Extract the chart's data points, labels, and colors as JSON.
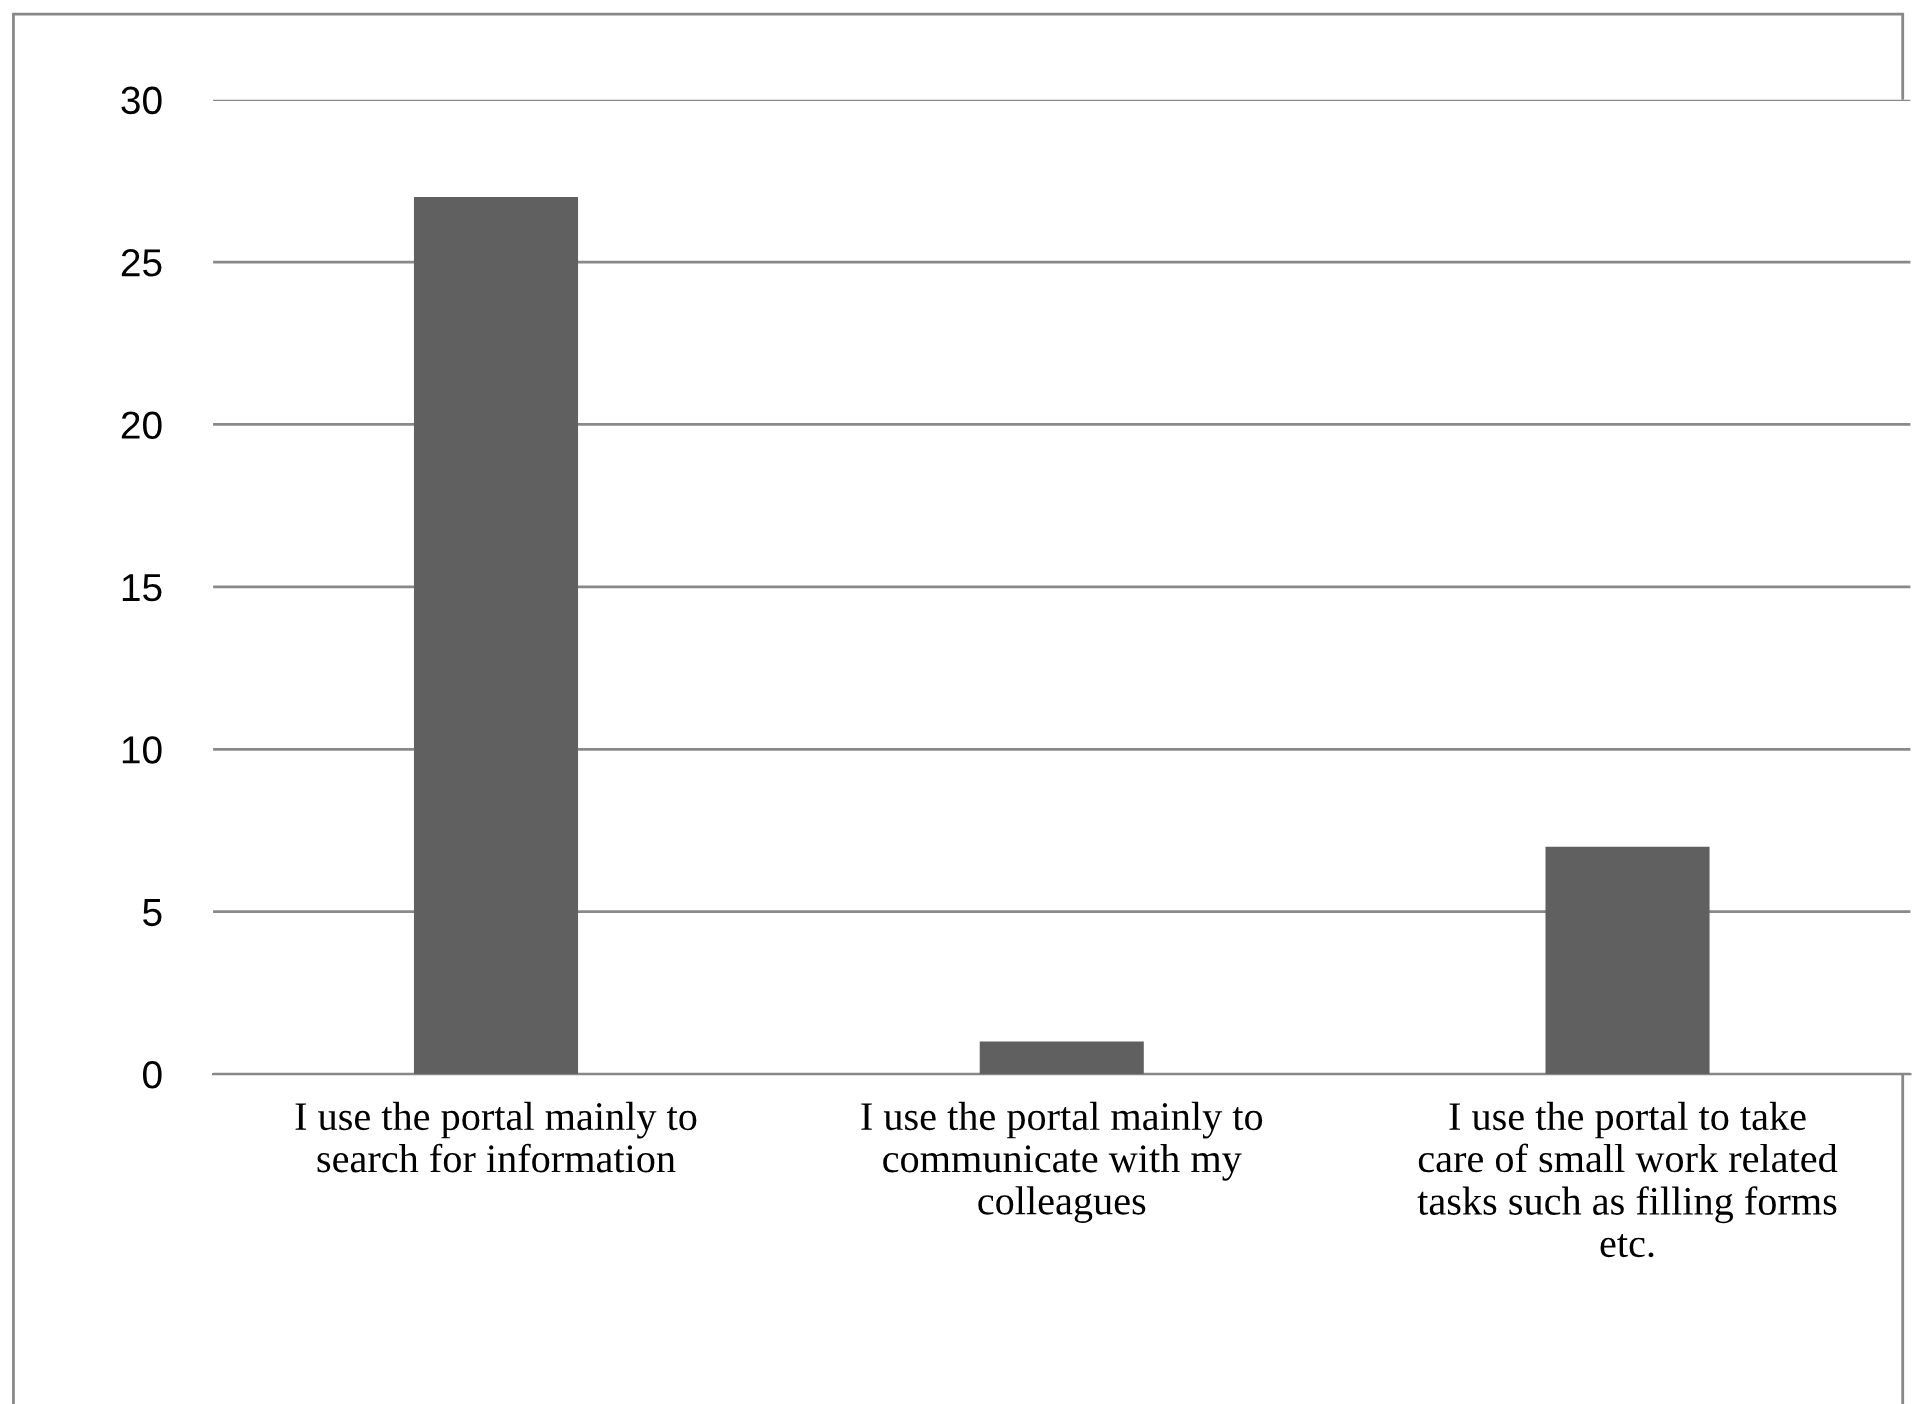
{
  "chart_data": {
    "type": "bar",
    "categories": [
      "I use the portal mainly to search for information",
      "I use the portal mainly to communicate with my colleagues",
      "I use the portal to take care of small work related tasks such as filling forms etc."
    ],
    "values": [
      27,
      1,
      7
    ],
    "color": "#606060",
    "ylim": [
      0,
      30
    ],
    "yticks": [
      0,
      5,
      10,
      15,
      20,
      25,
      30
    ],
    "grid": "y",
    "legend": false
  }
}
